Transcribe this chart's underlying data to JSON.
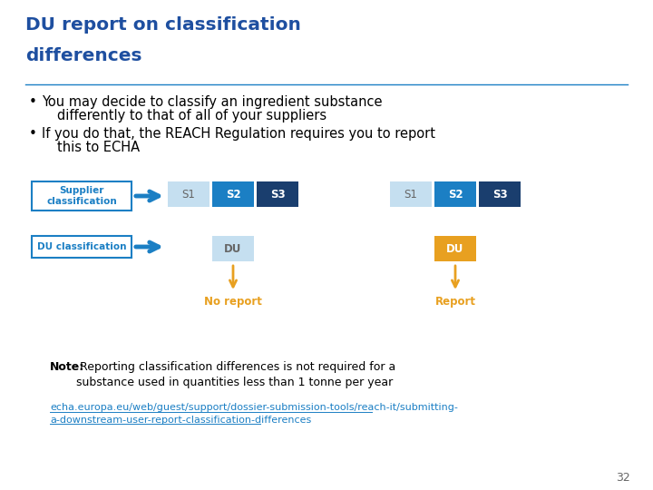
{
  "title_line1": "DU report on classification",
  "title_line2": "differences",
  "title_color": "#1E4FA0",
  "bullet1_line1": "You may decide to classify an ingredient substance",
  "bullet1_line2": "differently to that of all of your suppliers",
  "bullet2_line1": "If you do that, the REACH Regulation requires you to report",
  "bullet2_line2": "this to ECHA",
  "label_supplier": "Supplier\nclassification",
  "label_du": "DU classification",
  "label_box_color": "#1B7FC4",
  "s1_light": "#C5DFF0",
  "s2_medium": "#1B7FC4",
  "s3_dark": "#1A3E6E",
  "du_light": "#C5DFF0",
  "du_orange": "#E8A020",
  "arrow_blue": "#1B7FC4",
  "arrow_orange": "#E8A020",
  "no_report_text": "No report",
  "report_text": "Report",
  "note_bold": "Note:",
  "note_text": " Reporting classification differences is not required for a\nsubstance used in quantities less than 1 tonne per year",
  "link_text": "echa.europa.eu/web/guest/support/dossier-submission-tools/reach-it/submitting-\na-downstream-user-report-classification-differences",
  "link_color": "#1B7FC4",
  "page_number": "32",
  "bg_color": "#FFFFFF",
  "text_color": "#000000"
}
